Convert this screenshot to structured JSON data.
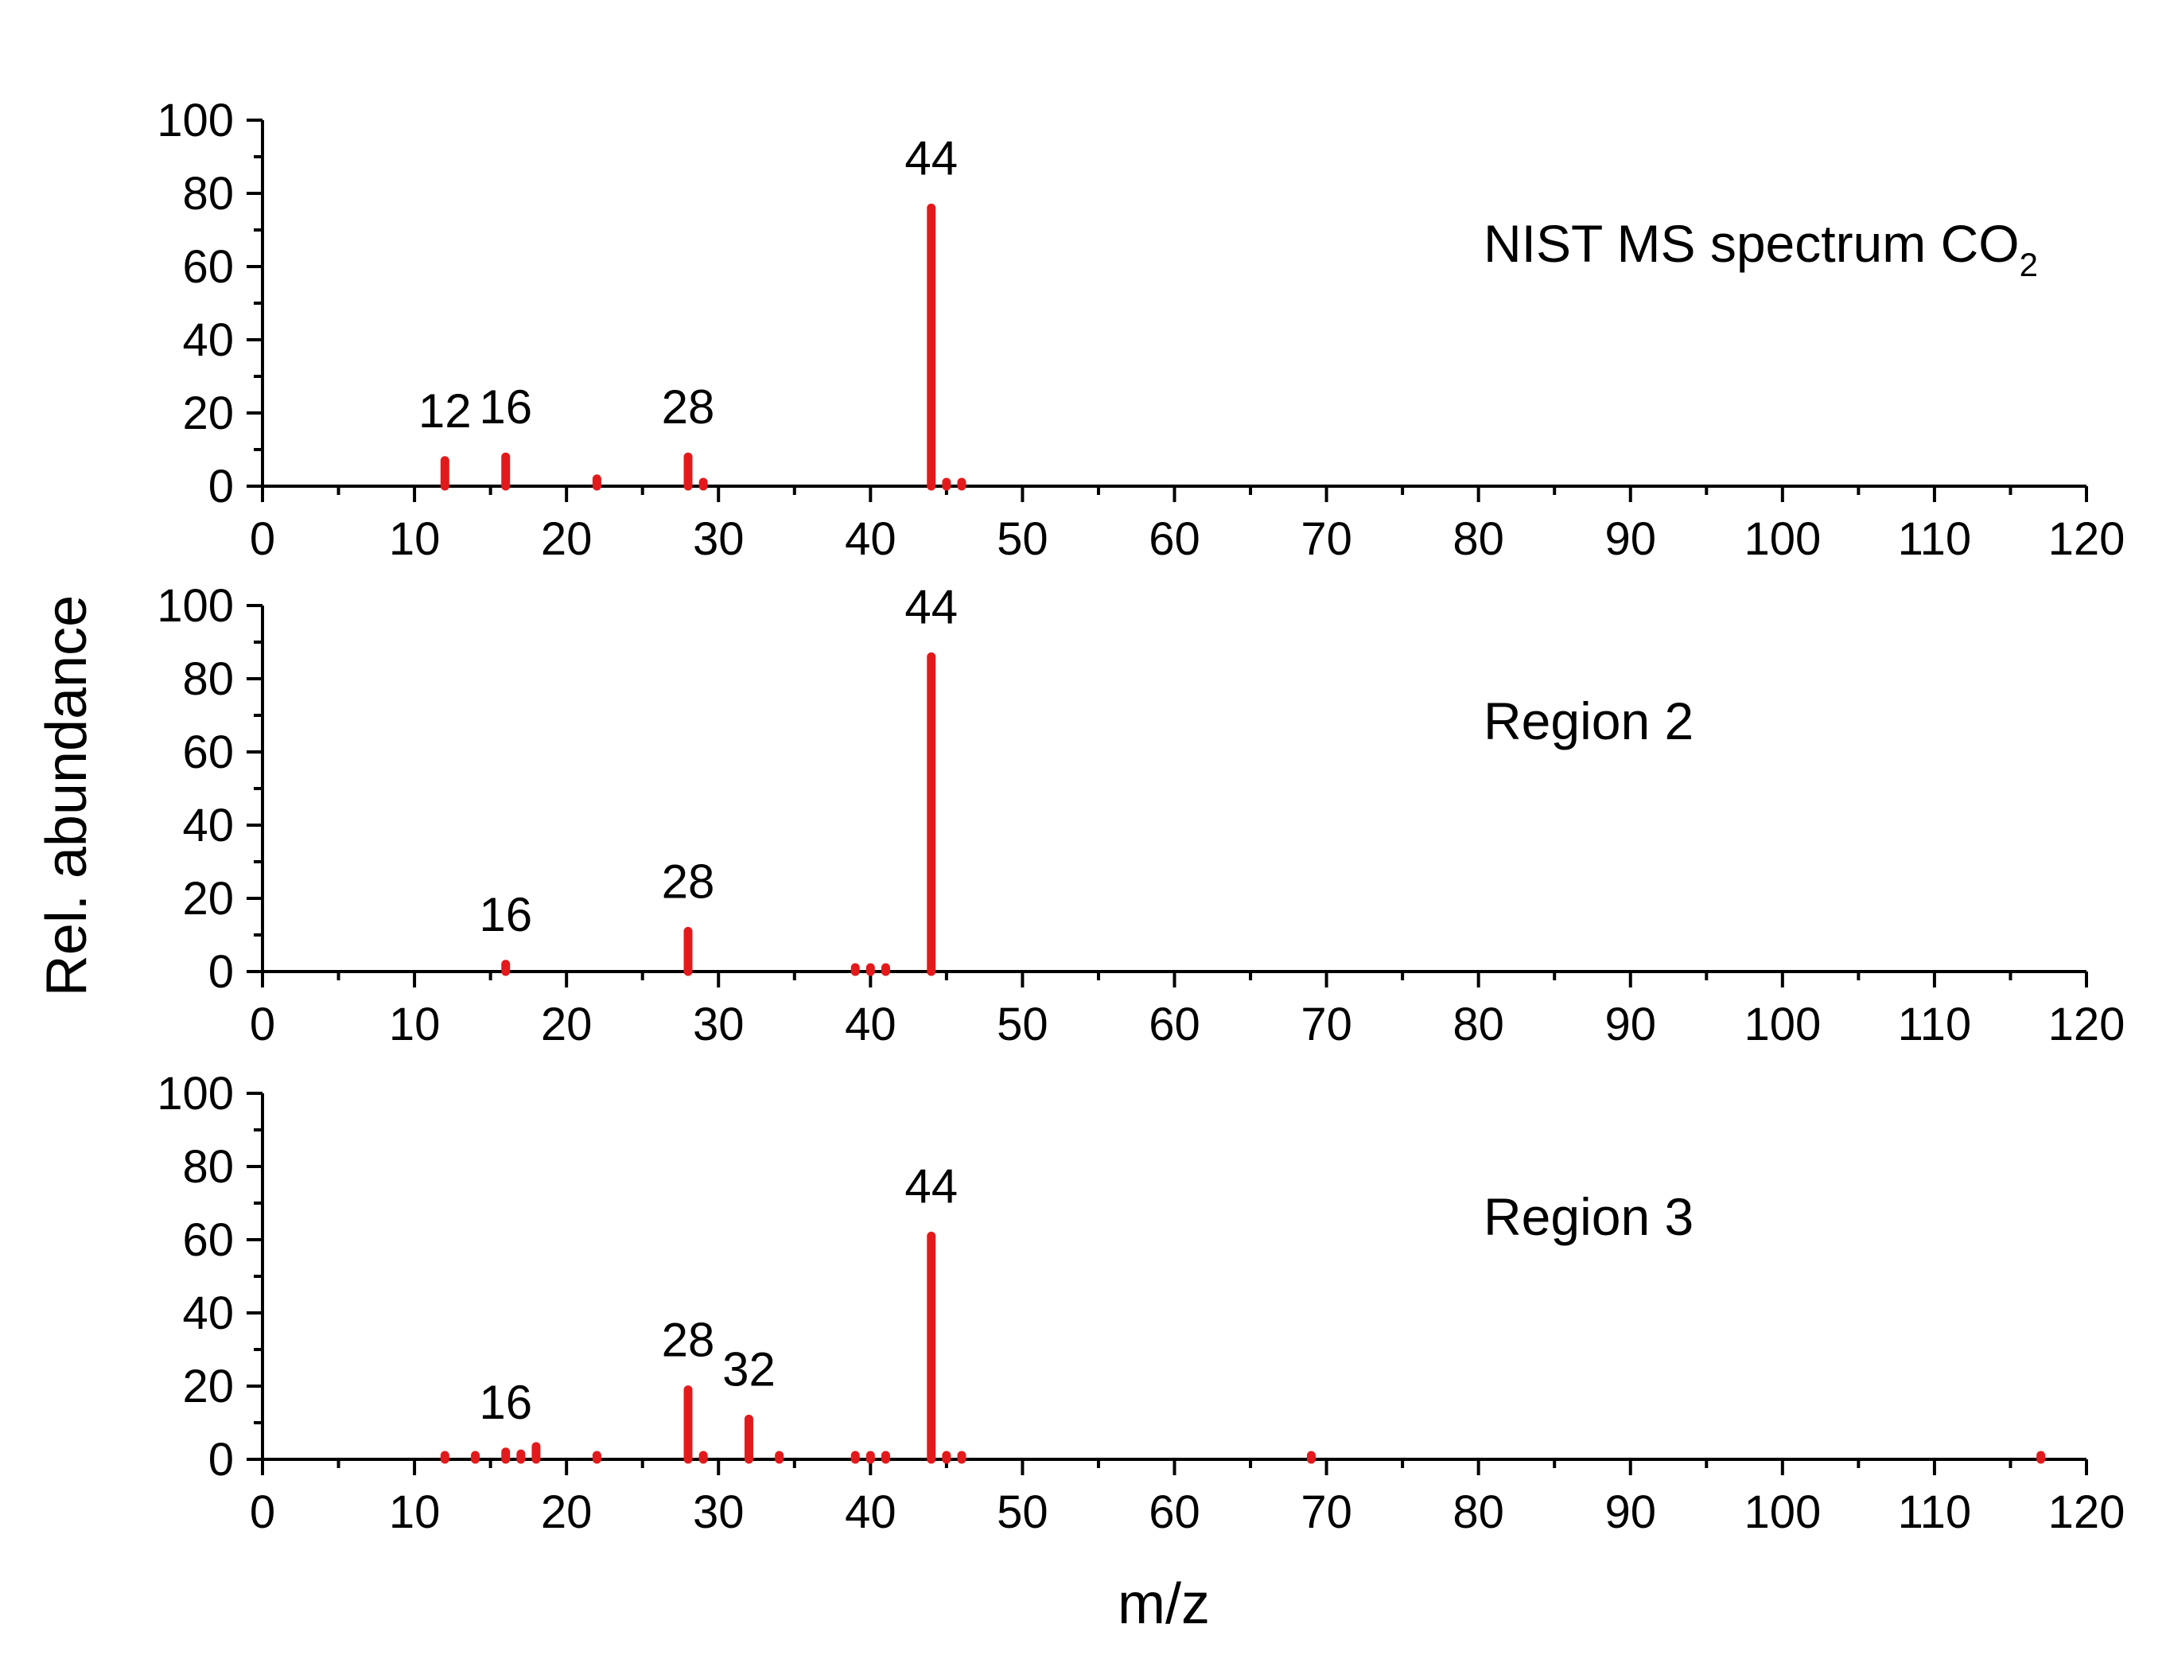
{
  "ylabel": "Rel. abundance",
  "xlabel": "m/z",
  "chart_data": [
    {
      "type": "bar",
      "panel_label": "NIST MS spectrum CO",
      "panel_label_subscript": "2",
      "x_ticks": [
        "0",
        "10",
        "20",
        "30",
        "40",
        "50",
        "60",
        "70",
        "80",
        "90",
        "100",
        "110",
        "120"
      ],
      "y_ticks": [
        "0",
        "20",
        "40",
        "60",
        "80",
        "100"
      ],
      "xlim": [
        0,
        120
      ],
      "ylim": [
        0,
        100
      ],
      "color": "#e31a1c",
      "peaks": [
        {
          "x": 12,
          "y": 7
        },
        {
          "x": 16,
          "y": 8
        },
        {
          "x": 22,
          "y": 2
        },
        {
          "x": 28,
          "y": 8
        },
        {
          "x": 29,
          "y": 0.5
        },
        {
          "x": 44,
          "y": 76
        },
        {
          "x": 45,
          "y": 1
        },
        {
          "x": 46,
          "y": 0.5
        }
      ],
      "peak_labels": [
        {
          "x": 12,
          "text": "12"
        },
        {
          "x": 16,
          "text": "16"
        },
        {
          "x": 28,
          "text": "28"
        },
        {
          "x": 44,
          "text": "44"
        }
      ]
    },
    {
      "type": "bar",
      "panel_label": "Region 2",
      "x_ticks": [
        "0",
        "10",
        "20",
        "30",
        "40",
        "50",
        "60",
        "70",
        "80",
        "90",
        "100",
        "110",
        "120"
      ],
      "y_ticks": [
        "0",
        "20",
        "40",
        "60",
        "80",
        "100"
      ],
      "xlim": [
        0,
        120
      ],
      "ylim": [
        0,
        100
      ],
      "color": "#e31a1c",
      "peaks": [
        {
          "x": 16,
          "y": 2
        },
        {
          "x": 28,
          "y": 11
        },
        {
          "x": 39,
          "y": 0.5
        },
        {
          "x": 40,
          "y": 0.5
        },
        {
          "x": 41,
          "y": 1
        },
        {
          "x": 44,
          "y": 86
        }
      ],
      "peak_labels": [
        {
          "x": 16,
          "text": "16"
        },
        {
          "x": 28,
          "text": "28"
        },
        {
          "x": 44,
          "text": "44"
        }
      ]
    },
    {
      "type": "bar",
      "panel_label": "Region 3",
      "x_ticks": [
        "0",
        "10",
        "20",
        "30",
        "40",
        "50",
        "60",
        "70",
        "80",
        "90",
        "100",
        "110",
        "120"
      ],
      "y_ticks": [
        "0",
        "20",
        "40",
        "60",
        "80",
        "100"
      ],
      "xlim": [
        0,
        120
      ],
      "ylim": [
        0,
        100
      ],
      "color": "#e31a1c",
      "peaks": [
        {
          "x": 12,
          "y": 0.5
        },
        {
          "x": 14,
          "y": 0.5
        },
        {
          "x": 16,
          "y": 2
        },
        {
          "x": 17,
          "y": 1.5
        },
        {
          "x": 18,
          "y": 3.5
        },
        {
          "x": 22,
          "y": 0.5
        },
        {
          "x": 28,
          "y": 19
        },
        {
          "x": 29,
          "y": 0.5
        },
        {
          "x": 32,
          "y": 11
        },
        {
          "x": 34,
          "y": 0.5
        },
        {
          "x": 39,
          "y": 0.5
        },
        {
          "x": 40,
          "y": 0.5
        },
        {
          "x": 41,
          "y": 0.5
        },
        {
          "x": 44,
          "y": 61
        },
        {
          "x": 45,
          "y": 1
        },
        {
          "x": 46,
          "y": 0.5
        },
        {
          "x": 69,
          "y": 0.5
        },
        {
          "x": 117,
          "y": 0.5
        }
      ],
      "peak_labels": [
        {
          "x": 16,
          "text": "16"
        },
        {
          "x": 28,
          "text": "28"
        },
        {
          "x": 32,
          "text": "32"
        },
        {
          "x": 44,
          "text": "44"
        }
      ]
    }
  ]
}
